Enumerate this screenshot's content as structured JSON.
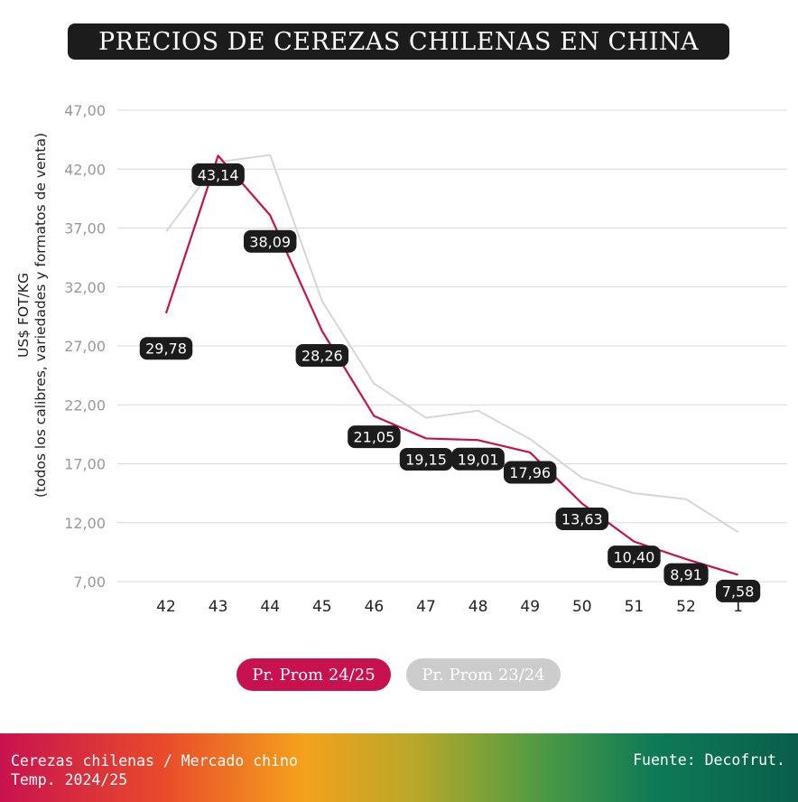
{
  "header": {
    "title": "PRECIOS DE CEREZAS CHILENAS EN CHINA"
  },
  "axis": {
    "ylabel_line1": "US$ FOT/KG",
    "ylabel_line2": "(todos los calibres, variedades y formatos de venta)"
  },
  "legend": {
    "series1": "Pr. Prom 24/25",
    "series2": "Pr. Prom 23/24"
  },
  "footer": {
    "left_line1": "Cerezas chilenas / Mercado chino",
    "left_line2": "Temp. 2024/25",
    "right": "Fuente: Decofrut."
  },
  "chart_data": {
    "type": "line",
    "title": "PRECIOS DE CEREZAS CHILENAS EN CHINA",
    "ylabel": "US$ FOT/KG (todos los calibres, variedades y formatos de venta)",
    "xlabel": "",
    "categories": [
      "42",
      "43",
      "44",
      "45",
      "46",
      "47",
      "48",
      "49",
      "50",
      "51",
      "52",
      "1"
    ],
    "yticks": [
      "7,00",
      "12,00",
      "17,00",
      "22,00",
      "27,00",
      "32,00",
      "37,00",
      "42,00",
      "47,00"
    ],
    "ylim": [
      7,
      47
    ],
    "grid": true,
    "legend_position": "bottom",
    "series": [
      {
        "name": "Pr. Prom 24/25",
        "color": "#c8114f",
        "values": [
          29.78,
          43.14,
          38.09,
          28.26,
          21.05,
          19.15,
          19.01,
          17.96,
          13.63,
          10.4,
          8.91,
          7.58
        ],
        "labels": [
          "29,78",
          "43,14",
          "38,09",
          "28,26",
          "21,05",
          "19,15",
          "19,01",
          "17,96",
          "13,63",
          "10,40",
          "8,91",
          "7,58"
        ]
      },
      {
        "name": "Pr. Prom 23/24",
        "color": "#d6d6d6",
        "values": [
          36.7,
          42.6,
          43.2,
          30.8,
          23.8,
          20.9,
          21.5,
          19.1,
          15.8,
          14.5,
          14.0,
          11.2
        ]
      }
    ]
  }
}
